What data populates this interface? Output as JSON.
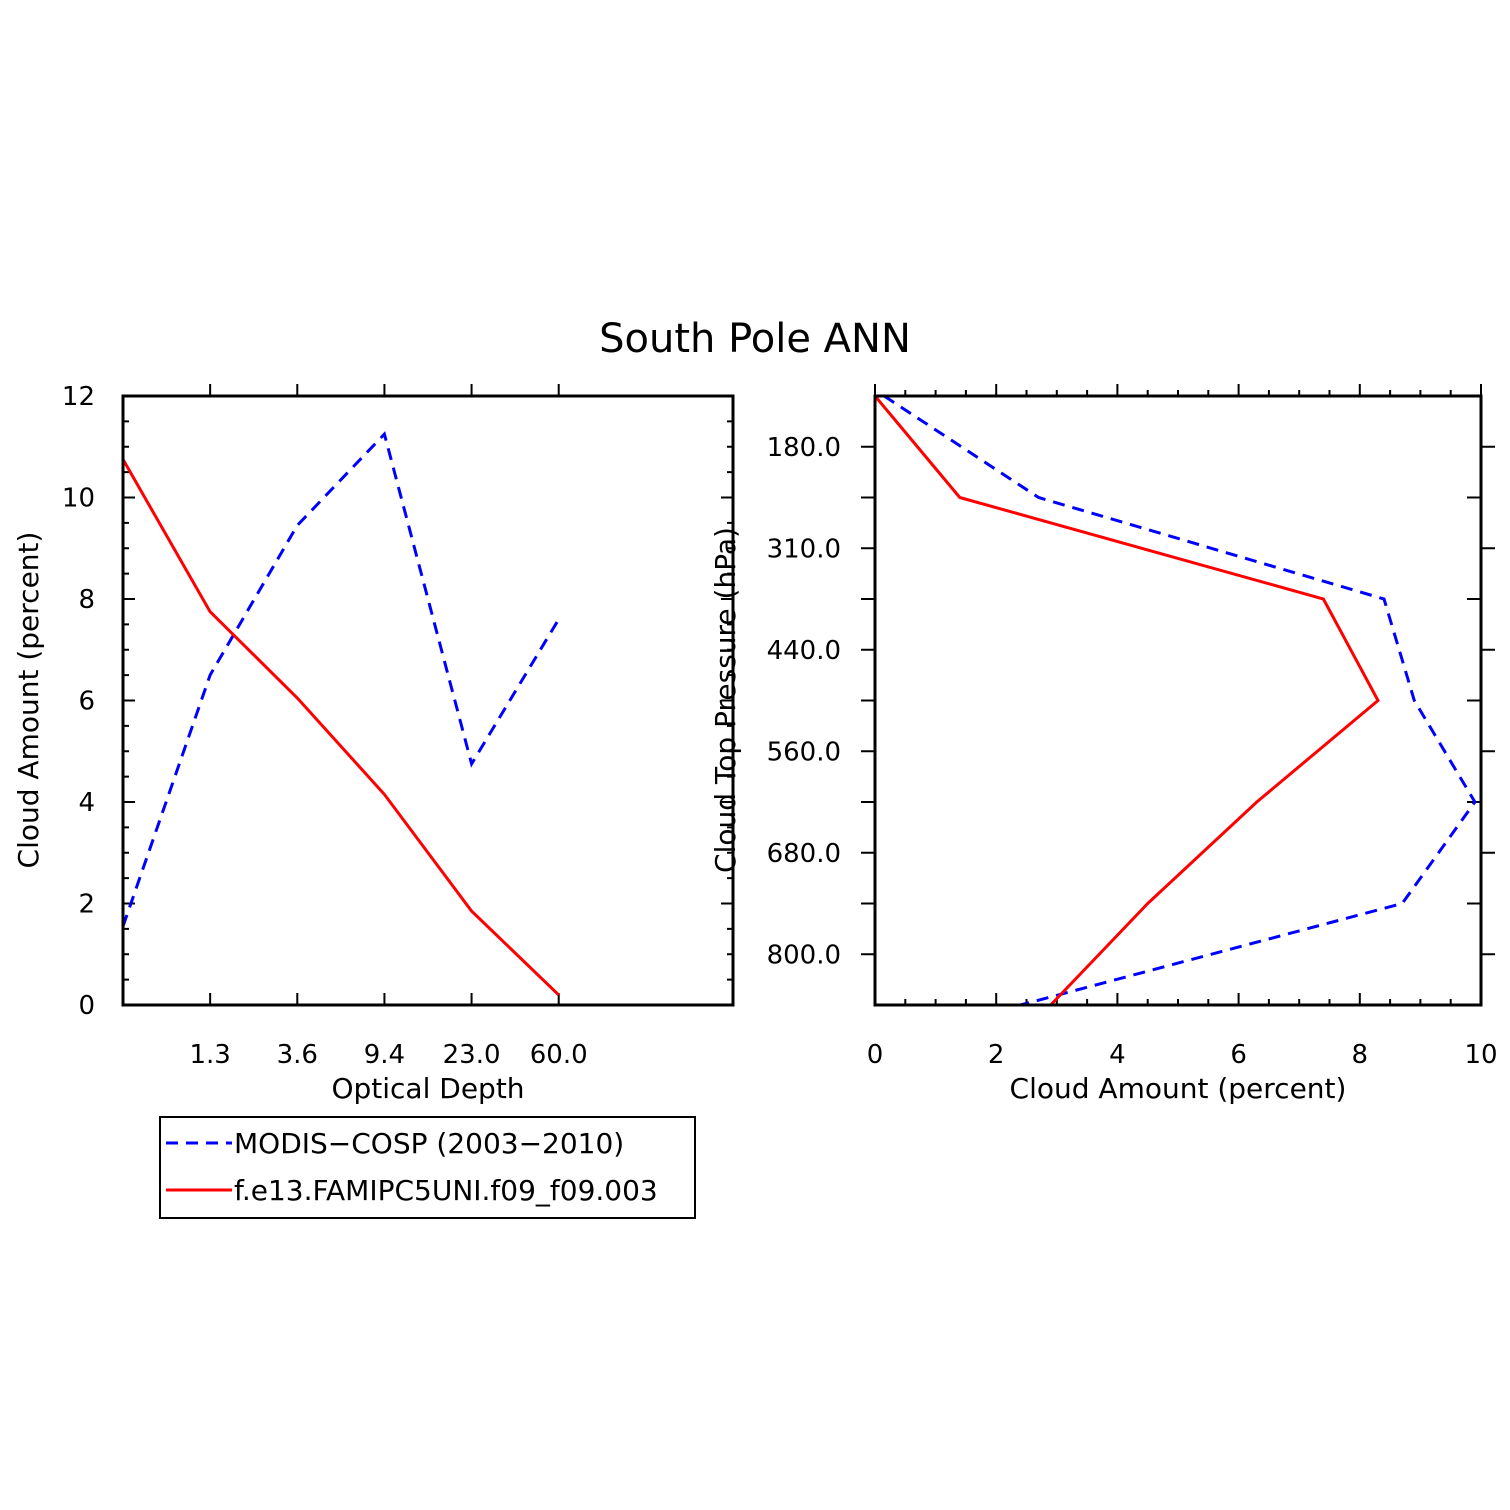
{
  "title": "South Pole ANN",
  "colors": {
    "obs": "#0000ff",
    "model": "#ff0000",
    "axis": "#000000"
  },
  "legend": {
    "placement": "below-left",
    "entries": [
      {
        "label": "MODIS−COSP (2003−2010)",
        "color": "#0000ff",
        "dash": "dashed"
      },
      {
        "label": "f.e13.FAMIPC5UNI.f09_f09.003",
        "color": "#ff0000",
        "dash": "solid"
      }
    ]
  },
  "chart_data": [
    {
      "type": "line",
      "xlabel": "Optical Depth",
      "ylabel": "Cloud Amount (percent)",
      "x_tick_labels": [
        "1.3",
        "3.6",
        "9.4",
        "23.0",
        "60.0"
      ],
      "y_ticks": [
        0,
        2,
        4,
        6,
        8,
        10,
        12
      ],
      "ylim": [
        0,
        12
      ],
      "x_bins": 7,
      "series": [
        {
          "name": "MODIS−COSP (2003−2010)",
          "style": "dashed",
          "color": "#0000ff",
          "values": [
            1.55,
            6.5,
            9.45,
            11.25,
            4.75,
            7.6
          ]
        },
        {
          "name": "f.e13.FAMIPC5UNI.f09_f09.003",
          "style": "solid",
          "color": "#ff0000",
          "values": [
            10.75,
            7.75,
            6.05,
            4.15,
            1.85,
            0.2
          ]
        }
      ]
    },
    {
      "type": "line",
      "xlabel": "Cloud Amount (percent)",
      "ylabel": "Cloud Top Pressure (hPa)",
      "x_ticks": [
        0,
        2,
        4,
        6,
        8,
        10
      ],
      "xlim": [
        0,
        10
      ],
      "y_tick_labels": [
        "180.0",
        "310.0",
        "440.0",
        "560.0",
        "680.0",
        "800.0"
      ],
      "y_bins": 6,
      "series": [
        {
          "name": "MODIS−COSP (2003−2010)",
          "style": "dashed",
          "color": "#0000ff",
          "values": [
            0.15,
            2.7,
            8.4,
            8.9,
            9.9,
            8.7,
            2.4
          ]
        },
        {
          "name": "f.e13.FAMIPC5UNI.f09_f09.003",
          "style": "solid",
          "color": "#ff0000",
          "values": [
            0.0,
            1.4,
            7.4,
            8.3,
            6.3,
            4.5,
            2.9
          ]
        }
      ]
    }
  ]
}
